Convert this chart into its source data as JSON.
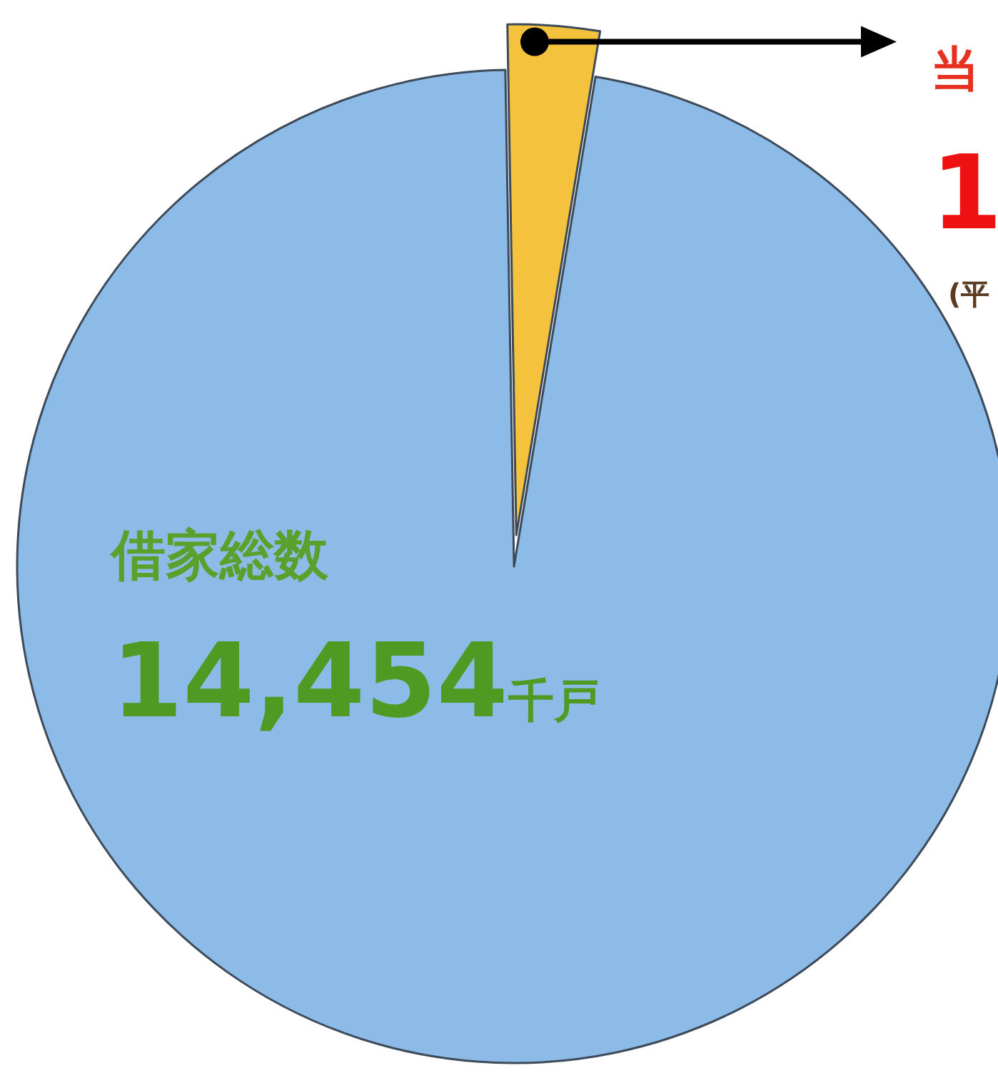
{
  "chart_data": {
    "type": "pie",
    "categories": [
      null,
      null
    ],
    "values": [
      2.9,
      97.1
    ],
    "colors": [
      "#f4c23c",
      "#8dbbe8"
    ],
    "annotations": [
      "借家総数",
      "14,454千戸",
      "当",
      "1",
      "(平"
    ]
  }
}
